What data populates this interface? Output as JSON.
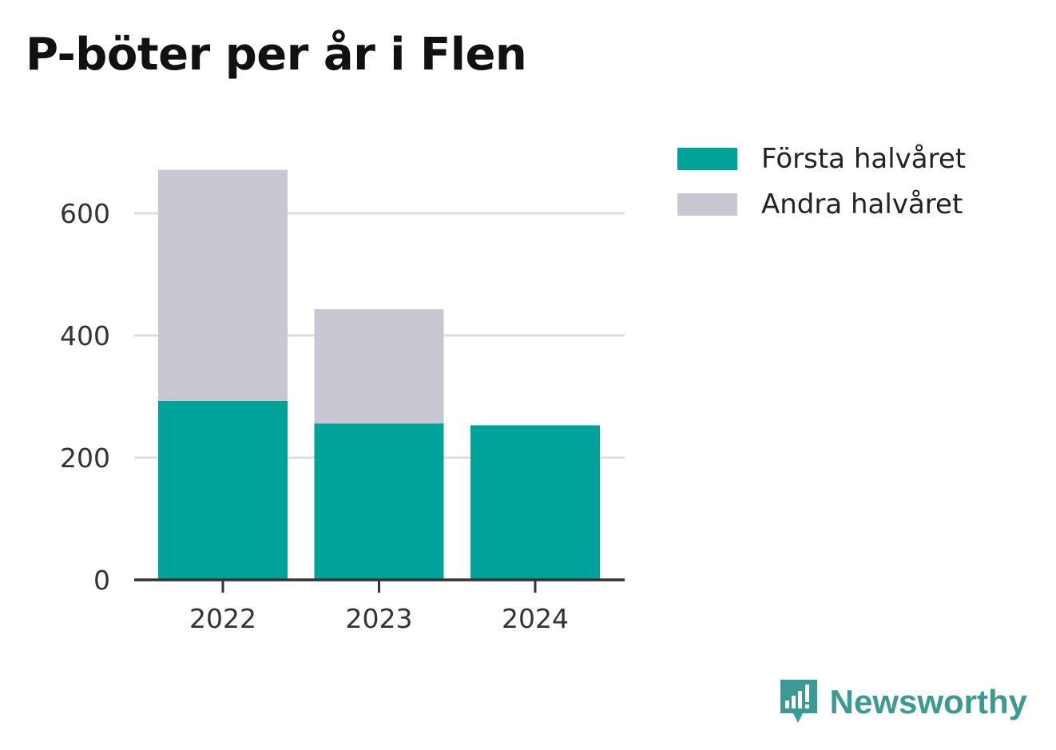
{
  "title": "P-böter per år i Flen",
  "colors": {
    "first_half": "#00a39a",
    "second_half": "#c8c7d2",
    "grid": "#dddddd",
    "axis": "#333333",
    "tick_text": "#333333",
    "brand": "#3c9a94"
  },
  "legend": {
    "first_half_label": "Första halvåret",
    "second_half_label": "Andra halvåret"
  },
  "brand": {
    "name": "Newsworthy",
    "icon": "newsworthy-logo-icon"
  },
  "chart_data": {
    "type": "bar",
    "stacked": true,
    "categories": [
      "2022",
      "2023",
      "2024"
    ],
    "series": [
      {
        "name": "Första halvåret",
        "values": [
          293,
          256,
          253
        ]
      },
      {
        "name": "Andra halvåret",
        "values": [
          378,
          187,
          0
        ]
      }
    ],
    "ylim": [
      0,
      700
    ],
    "yticks": [
      0,
      200,
      400,
      600
    ],
    "grid": true,
    "legend_position": "right"
  }
}
